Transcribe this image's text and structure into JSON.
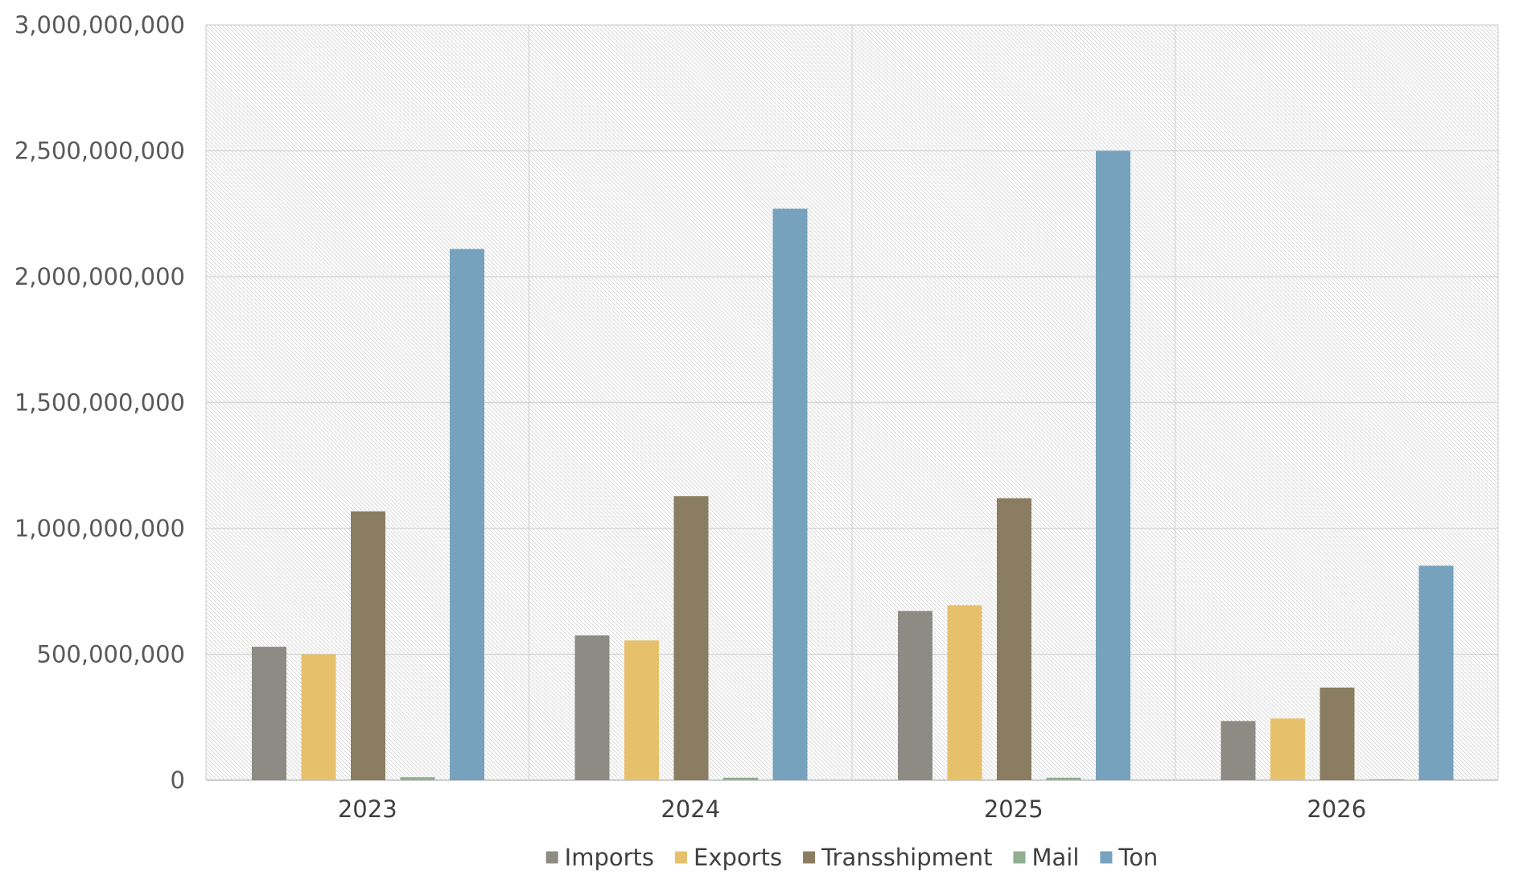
{
  "chart_data": {
    "type": "bar",
    "title": "",
    "xlabel": "",
    "ylabel": "",
    "categories": [
      "2023",
      "2024",
      "2025",
      "2026"
    ],
    "ylim": [
      0,
      3000000000
    ],
    "yticks": [
      0,
      500000000,
      1000000000,
      1500000000,
      2000000000,
      2500000000,
      3000000000
    ],
    "ytick_labels": [
      "0",
      "500,000,000",
      "1,000,000,000",
      "1,500,000,000",
      "2,000,000,000",
      "2,500,000,000",
      "3,000,000,000"
    ],
    "grid": true,
    "legend_position": "bottom",
    "series": [
      {
        "name": "Imports",
        "color": "#8c8c84",
        "values": [
          530000000,
          575000000,
          672000000,
          235000000
        ]
      },
      {
        "name": "Exports",
        "color": "#e6c06b",
        "values": [
          500000000,
          555000000,
          695000000,
          245000000
        ]
      },
      {
        "name": "Transshipment",
        "color": "#8b7d61",
        "values": [
          1068000000,
          1128000000,
          1120000000,
          368000000
        ]
      },
      {
        "name": "Mail",
        "color": "#8faf90",
        "values": [
          12000000,
          10000000,
          10000000,
          3000000
        ]
      },
      {
        "name": "Ton",
        "color": "#76a2bd",
        "values": [
          2110000000,
          2270000000,
          2500000000,
          852000000
        ]
      }
    ]
  }
}
